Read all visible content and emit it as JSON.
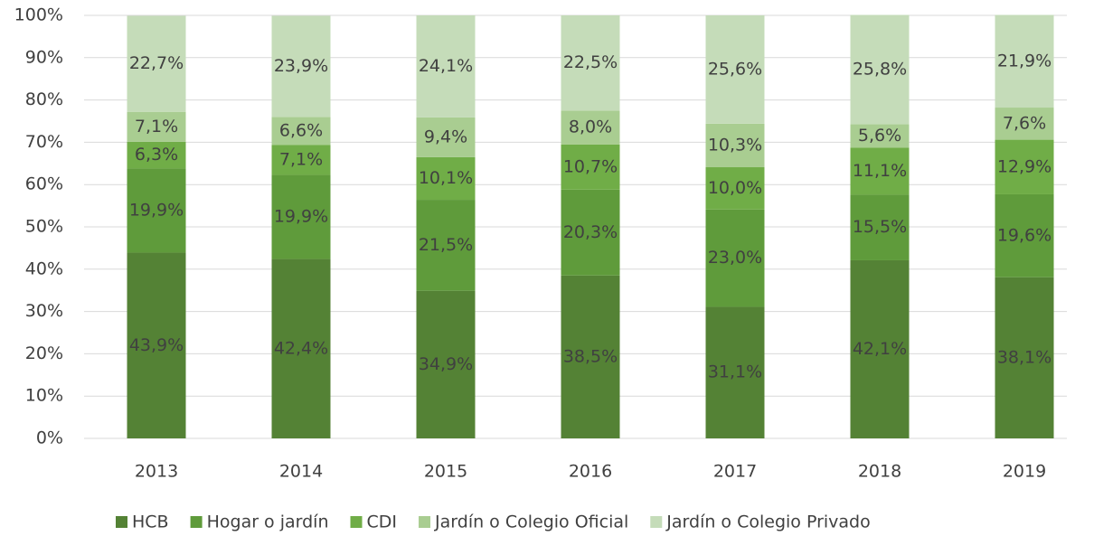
{
  "chart_data": {
    "type": "stacked_bar",
    "categories": [
      "2013",
      "2014",
      "2015",
      "2016",
      "2017",
      "2018",
      "2019"
    ],
    "series": [
      {
        "name": "HCB",
        "color": "#548235",
        "values": [
          43.9,
          42.4,
          34.9,
          38.5,
          31.1,
          42.1,
          38.1
        ],
        "value_labels": [
          "43,9%",
          "42,4%",
          "34,9%",
          "38,5%",
          "31,1%",
          "42,1%",
          "38,1%"
        ]
      },
      {
        "name": "Hogar o jardín",
        "color": "#5f9b3b",
        "values": [
          19.9,
          19.9,
          21.5,
          20.3,
          23.0,
          15.5,
          19.6
        ],
        "value_labels": [
          "19,9%",
          "19,9%",
          "21,5%",
          "20,3%",
          "23,0%",
          "15,5%",
          "19,6%"
        ]
      },
      {
        "name": "CDI",
        "color": "#70ad47",
        "values": [
          6.3,
          7.1,
          10.1,
          10.7,
          10.0,
          11.1,
          12.9
        ],
        "value_labels": [
          "6,3%",
          "7,1%",
          "10,1%",
          "10,7%",
          "10,0%",
          "11,1%",
          "12,9%"
        ]
      },
      {
        "name": "Jardín o Colegio Oficial",
        "color": "#a9cd91",
        "values": [
          7.1,
          6.6,
          9.4,
          8.0,
          10.3,
          5.6,
          7.6
        ],
        "value_labels": [
          "7,1%",
          "6,6%",
          "9,4%",
          "8,0%",
          "10,3%",
          "5,6%",
          "7,6%"
        ]
      },
      {
        "name": "Jardín o Colegio Privado",
        "color": "#c5dcb9",
        "values": [
          22.7,
          23.9,
          24.1,
          22.5,
          25.6,
          25.8,
          21.9
        ],
        "value_labels": [
          "22,7%",
          "23,9%",
          "24,1%",
          "22,5%",
          "25,6%",
          "25,8%",
          "21,9%"
        ]
      }
    ],
    "ylim": [
      0,
      100
    ],
    "yticks": [
      {
        "value": 0,
        "label": "0%"
      },
      {
        "value": 10,
        "label": "10%"
      },
      {
        "value": 20,
        "label": "20%"
      },
      {
        "value": 30,
        "label": "30%"
      },
      {
        "value": 40,
        "label": "40%"
      },
      {
        "value": 50,
        "label": "50%"
      },
      {
        "value": 60,
        "label": "60%"
      },
      {
        "value": 70,
        "label": "70%"
      },
      {
        "value": 80,
        "label": "80%"
      },
      {
        "value": 90,
        "label": "90%"
      },
      {
        "value": 100,
        "label": "100%"
      }
    ],
    "grid": true,
    "legend": "bottom"
  }
}
